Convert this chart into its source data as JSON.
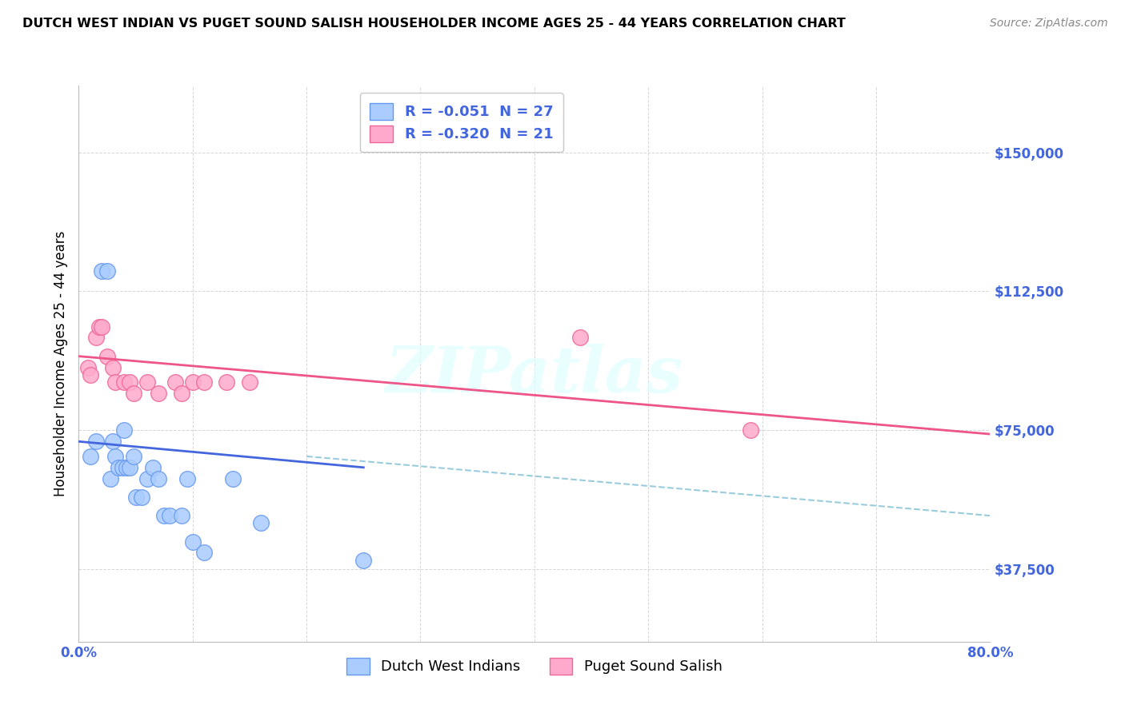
{
  "title": "DUTCH WEST INDIAN VS PUGET SOUND SALISH HOUSEHOLDER INCOME AGES 25 - 44 YEARS CORRELATION CHART",
  "source": "Source: ZipAtlas.com",
  "ylabel": "Householder Income Ages 25 - 44 years",
  "y_ticks": [
    37500,
    75000,
    112500,
    150000
  ],
  "y_tick_labels": [
    "$37,500",
    "$75,000",
    "$112,500",
    "$150,000"
  ],
  "xlim": [
    0.0,
    0.8
  ],
  "ylim": [
    18000,
    168000
  ],
  "legend_entry1": "R = -0.051  N = 27",
  "legend_entry2": "R = -0.320  N = 21",
  "legend_label1": "Dutch West Indians",
  "legend_label2": "Puget Sound Salish",
  "color_blue": "#AACCFF",
  "color_pink": "#FFAACC",
  "color_blue_edge": "#6699EE",
  "color_pink_edge": "#EE6699",
  "color_blue_line": "#4466DD",
  "color_pink_line": "#EE5588",
  "color_dashed": "#99CCDD",
  "watermark": "ZIPatlas",
  "bg_color": "#FFFFFF",
  "grid_color": "#CCCCCC",
  "tick_color": "#4466DD",
  "blue_scatter_x": [
    0.01,
    0.015,
    0.02,
    0.025,
    0.028,
    0.03,
    0.032,
    0.035,
    0.038,
    0.04,
    0.042,
    0.045,
    0.048,
    0.05,
    0.055,
    0.06,
    0.065,
    0.07,
    0.075,
    0.08,
    0.09,
    0.095,
    0.1,
    0.11,
    0.135,
    0.16,
    0.25
  ],
  "blue_scatter_y": [
    68000,
    72000,
    118000,
    118000,
    62000,
    72000,
    68000,
    65000,
    65000,
    75000,
    65000,
    65000,
    68000,
    57000,
    57000,
    62000,
    65000,
    62000,
    52000,
    52000,
    52000,
    62000,
    45000,
    42000,
    62000,
    50000,
    40000
  ],
  "pink_scatter_x": [
    0.008,
    0.01,
    0.015,
    0.018,
    0.02,
    0.025,
    0.03,
    0.032,
    0.04,
    0.045,
    0.048,
    0.06,
    0.07,
    0.085,
    0.09,
    0.1,
    0.11,
    0.13,
    0.15,
    0.44,
    0.59
  ],
  "pink_scatter_y": [
    92000,
    90000,
    100000,
    103000,
    103000,
    95000,
    92000,
    88000,
    88000,
    88000,
    85000,
    88000,
    85000,
    88000,
    85000,
    88000,
    88000,
    88000,
    88000,
    100000,
    75000
  ],
  "blue_line_x0": 0.0,
  "blue_line_x1": 0.25,
  "blue_line_y0": 72000,
  "blue_line_y1": 65000,
  "pink_line_x0": 0.0,
  "pink_line_x1": 0.8,
  "pink_line_y0": 95000,
  "pink_line_y1": 74000,
  "dashed_line_x0": 0.2,
  "dashed_line_x1": 0.8,
  "dashed_line_y0": 68000,
  "dashed_line_y1": 52000
}
